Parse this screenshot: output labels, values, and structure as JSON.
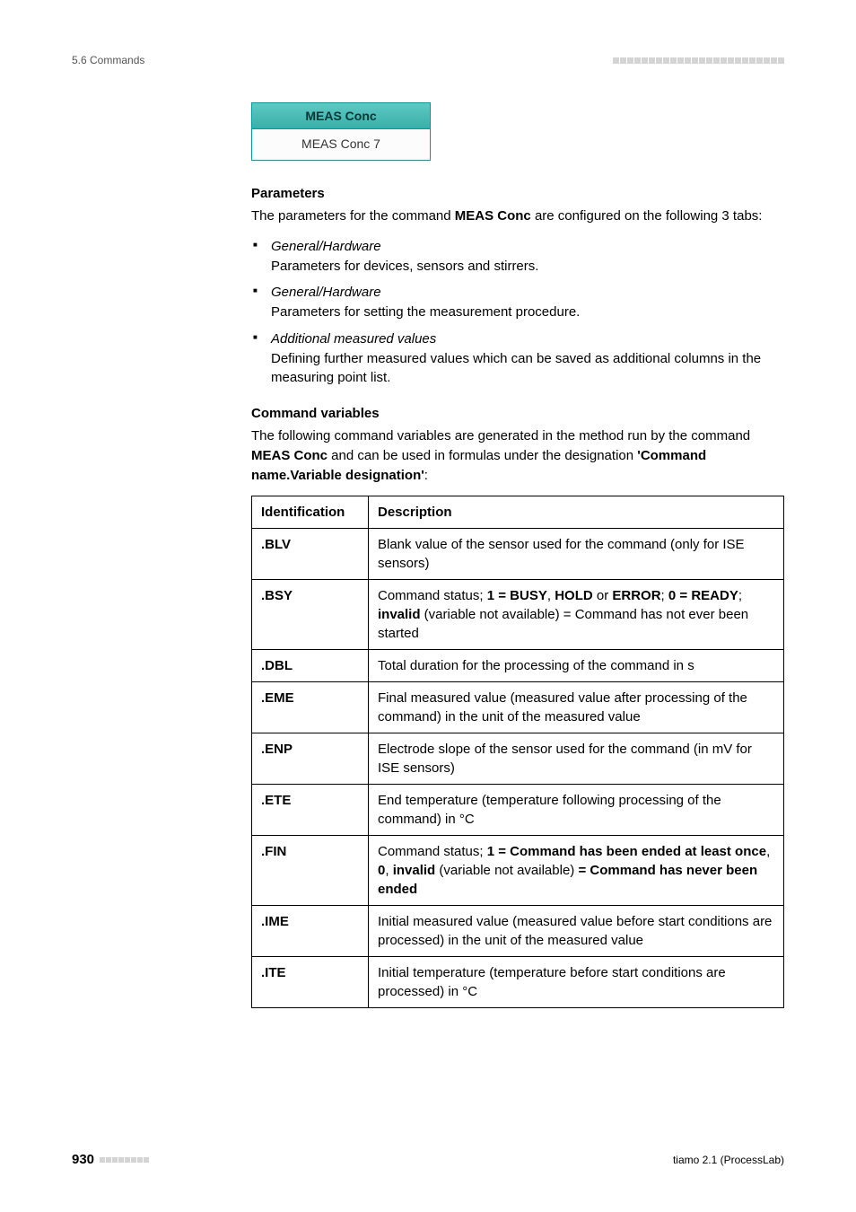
{
  "header": {
    "section_label": "5.6 Commands",
    "squares_count": 24
  },
  "command_box": {
    "title": "MEAS Conc",
    "body": "MEAS Conc 7"
  },
  "parameters": {
    "heading": "Parameters",
    "intro_pre": "The parameters for the command ",
    "intro_bold": "MEAS Conc",
    "intro_post": " are configured on the following 3 tabs:",
    "items": [
      {
        "title": "General/Hardware",
        "desc": "Parameters for devices, sensors and stirrers."
      },
      {
        "title": "General/Hardware",
        "desc": "Parameters for setting the measurement procedure."
      },
      {
        "title": "Additional measured values",
        "desc": "Defining further measured values which can be saved as additional columns in the measuring point list."
      }
    ]
  },
  "variables": {
    "heading": "Command variables",
    "intro_pre": "The following command variables are generated in the method run by the command ",
    "intro_bold": "MEAS Conc",
    "intro_mid": " and can be used in formulas under the designation ",
    "intro_bold2": "'Command name.Variable designation'",
    "intro_post": ":",
    "col_id": "Identification",
    "col_desc": "Description",
    "rows": [
      {
        "id": ".BLV",
        "desc_plain": "Blank value of the sensor used for the command (only for ISE sensors)"
      },
      {
        "id": ".BSY",
        "parts": [
          {
            "t": "Command status; ",
            "b": false
          },
          {
            "t": "1 = BUSY",
            "b": true
          },
          {
            "t": ", ",
            "b": false
          },
          {
            "t": "HOLD",
            "b": true
          },
          {
            "t": " or ",
            "b": false
          },
          {
            "t": "ERROR",
            "b": true
          },
          {
            "t": "; ",
            "b": false
          },
          {
            "t": "0 = READY",
            "b": true
          },
          {
            "t": "; ",
            "b": false
          },
          {
            "t": "invalid",
            "b": true
          },
          {
            "t": " (variable not available) = Command has not ever been started",
            "b": false
          }
        ]
      },
      {
        "id": ".DBL",
        "desc_plain": "Total duration for the processing of the command in s"
      },
      {
        "id": ".EME",
        "desc_plain": "Final measured value (measured value after processing of the command) in the unit of the measured value"
      },
      {
        "id": ".ENP",
        "desc_plain": "Electrode slope of the sensor used for the command (in mV for ISE sensors)"
      },
      {
        "id": ".ETE",
        "desc_plain": "End temperature (temperature following processing of the command) in °C"
      },
      {
        "id": ".FIN",
        "parts": [
          {
            "t": "Command status; ",
            "b": false
          },
          {
            "t": "1 = Command has been ended at least once",
            "b": true
          },
          {
            "t": ", ",
            "b": false
          },
          {
            "t": "0",
            "b": true
          },
          {
            "t": ", ",
            "b": false
          },
          {
            "t": "invalid",
            "b": true
          },
          {
            "t": " (variable not available) ",
            "b": false
          },
          {
            "t": "= Command has never been ended",
            "b": true
          }
        ]
      },
      {
        "id": ".IME",
        "desc_plain": "Initial measured value (measured value before start conditions are processed) in the unit of the measured value"
      },
      {
        "id": ".ITE",
        "desc_plain": "Initial temperature (temperature before start conditions are processed) in °C"
      }
    ]
  },
  "footer": {
    "page_num": "930",
    "squares_count": 8,
    "product": "tiamo 2.1 (ProcessLab)"
  }
}
